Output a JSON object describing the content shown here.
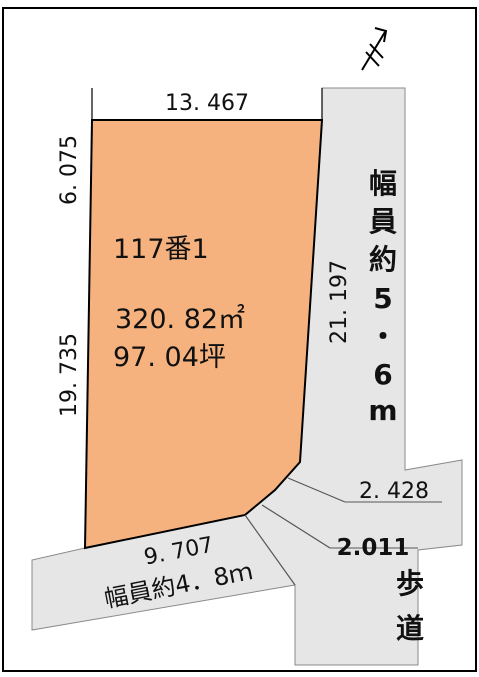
{
  "lot": {
    "number": "117番1",
    "area_sqm": "320. 82㎡",
    "area_tsubo": "97. 04坪",
    "fill_color": "#f5b27f"
  },
  "dimensions": {
    "top": "13. 467",
    "left_upper": "6. 075",
    "left_lower": "19. 735",
    "right": "21. 197",
    "bottom": "9. 707",
    "right_corner_upper": "2. 428",
    "right_corner_lower": "2.011"
  },
  "roads": {
    "east_chars": [
      "幅",
      "員",
      "約",
      "5",
      "・",
      "6",
      "m"
    ],
    "south_label": "幅員約4．8ｍ",
    "sidewalk_chars": [
      "歩",
      "道"
    ],
    "road_color": "#e6e6e6"
  },
  "compass": {
    "icon": "north-arrow-icon"
  }
}
